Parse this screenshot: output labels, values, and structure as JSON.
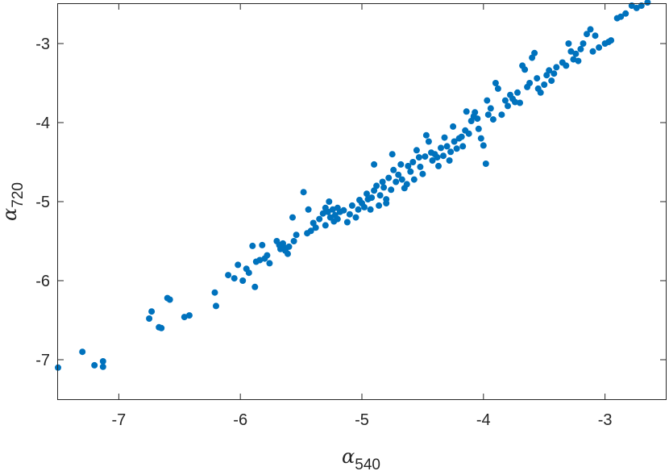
{
  "chart_data": {
    "type": "scatter",
    "title": "",
    "xlabel": {
      "symbol": "α",
      "subscript": "540"
    },
    "ylabel": {
      "symbol": "α",
      "subscript": "720"
    },
    "xlim": [
      -7.5,
      -2.5
    ],
    "ylim": [
      -7.5,
      -2.5
    ],
    "xticks": [
      -7,
      -6,
      -5,
      -4,
      -3
    ],
    "yticks": [
      -7,
      -6,
      -5,
      -4,
      -3
    ],
    "xtick_labels": [
      "-7",
      "-6",
      "-5",
      "-4",
      "-3"
    ],
    "ytick_labels": [
      "-7",
      "-6",
      "-5",
      "-4",
      "-3"
    ],
    "grid": false,
    "legend": false,
    "marker_color": "#0072BD",
    "series": [
      {
        "points": [
          [
            -7.5,
            -7.1
          ],
          [
            -7.3,
            -6.9
          ],
          [
            -7.2,
            -7.07
          ],
          [
            -7.13,
            -7.02
          ],
          [
            -7.13,
            -7.09
          ],
          [
            -6.75,
            -6.48
          ],
          [
            -6.73,
            -6.39
          ],
          [
            -6.67,
            -6.59
          ],
          [
            -6.65,
            -6.6
          ],
          [
            -6.6,
            -6.22
          ],
          [
            -6.58,
            -6.24
          ],
          [
            -6.46,
            -6.46
          ],
          [
            -6.42,
            -6.44
          ],
          [
            -6.21,
            -6.15
          ],
          [
            -6.2,
            -6.32
          ],
          [
            -6.1,
            -5.93
          ],
          [
            -6.05,
            -5.97
          ],
          [
            -6.02,
            -5.8
          ],
          [
            -5.98,
            -6.0
          ],
          [
            -5.95,
            -5.85
          ],
          [
            -5.93,
            -5.9
          ],
          [
            -5.9,
            -5.56
          ],
          [
            -5.88,
            -6.08
          ],
          [
            -5.87,
            -5.76
          ],
          [
            -5.84,
            -5.74
          ],
          [
            -5.82,
            -5.55
          ],
          [
            -5.8,
            -5.72
          ],
          [
            -5.78,
            -5.68
          ],
          [
            -5.76,
            -5.78
          ],
          [
            -5.7,
            -5.5
          ],
          [
            -5.68,
            -5.55
          ],
          [
            -5.67,
            -5.6
          ],
          [
            -5.65,
            -5.53
          ],
          [
            -5.64,
            -5.58
          ],
          [
            -5.63,
            -5.62
          ],
          [
            -5.61,
            -5.66
          ],
          [
            -5.6,
            -5.57
          ],
          [
            -5.57,
            -5.2
          ],
          [
            -5.56,
            -5.5
          ],
          [
            -5.54,
            -5.42
          ],
          [
            -5.48,
            -4.88
          ],
          [
            -5.45,
            -5.4
          ],
          [
            -5.42,
            -5.37
          ],
          [
            -5.44,
            -5.1
          ],
          [
            -5.4,
            -5.27
          ],
          [
            -5.38,
            -5.33
          ],
          [
            -5.35,
            -5.22
          ],
          [
            -5.32,
            -5.15
          ],
          [
            -5.3,
            -5.3
          ],
          [
            -5.3,
            -5.08
          ],
          [
            -5.28,
            -5.13
          ],
          [
            -5.27,
            -5.0
          ],
          [
            -5.26,
            -5.2
          ],
          [
            -5.24,
            -5.1
          ],
          [
            -5.23,
            -5.25
          ],
          [
            -5.22,
            -5.17
          ],
          [
            -5.2,
            -5.08
          ],
          [
            -5.2,
            -5.22
          ],
          [
            -5.18,
            -5.13
          ],
          [
            -5.15,
            -5.11
          ],
          [
            -5.12,
            -5.26
          ],
          [
            -5.1,
            -5.16
          ],
          [
            -5.08,
            -5.05
          ],
          [
            -5.05,
            -5.2
          ],
          [
            -5.03,
            -5.1
          ],
          [
            -5.02,
            -4.98
          ],
          [
            -5.0,
            -5.02
          ],
          [
            -4.98,
            -5.07
          ],
          [
            -4.96,
            -4.9
          ],
          [
            -4.95,
            -4.97
          ],
          [
            -4.93,
            -5.1
          ],
          [
            -4.92,
            -4.95
          ],
          [
            -4.9,
            -4.86
          ],
          [
            -4.9,
            -4.53
          ],
          [
            -4.88,
            -4.8
          ],
          [
            -4.86,
            -5.05
          ],
          [
            -4.85,
            -4.92
          ],
          [
            -4.83,
            -4.75
          ],
          [
            -4.82,
            -4.82
          ],
          [
            -4.8,
            -5.02
          ],
          [
            -4.8,
            -4.97
          ],
          [
            -4.78,
            -4.7
          ],
          [
            -4.76,
            -4.85
          ],
          [
            -4.75,
            -4.4
          ],
          [
            -4.74,
            -4.6
          ],
          [
            -4.72,
            -4.75
          ],
          [
            -4.7,
            -4.66
          ],
          [
            -4.68,
            -4.53
          ],
          [
            -4.67,
            -4.72
          ],
          [
            -4.65,
            -4.83
          ],
          [
            -4.63,
            -4.78
          ],
          [
            -4.62,
            -4.55
          ],
          [
            -4.6,
            -4.62
          ],
          [
            -4.58,
            -4.5
          ],
          [
            -4.57,
            -4.72
          ],
          [
            -4.55,
            -4.35
          ],
          [
            -4.53,
            -4.44
          ],
          [
            -4.52,
            -4.56
          ],
          [
            -4.5,
            -4.65
          ],
          [
            -4.48,
            -4.43
          ],
          [
            -4.47,
            -4.16
          ],
          [
            -4.45,
            -4.24
          ],
          [
            -4.43,
            -4.38
          ],
          [
            -4.42,
            -4.48
          ],
          [
            -4.4,
            -4.4
          ],
          [
            -4.38,
            -4.44
          ],
          [
            -4.37,
            -4.55
          ],
          [
            -4.35,
            -4.32
          ],
          [
            -4.33,
            -4.42
          ],
          [
            -4.32,
            -4.19
          ],
          [
            -4.3,
            -4.3
          ],
          [
            -4.28,
            -4.48
          ],
          [
            -4.27,
            -4.37
          ],
          [
            -4.25,
            -4.05
          ],
          [
            -4.24,
            -4.24
          ],
          [
            -4.22,
            -4.33
          ],
          [
            -4.2,
            -4.2
          ],
          [
            -4.18,
            -4.18
          ],
          [
            -4.17,
            -4.3
          ],
          [
            -4.15,
            -4.1
          ],
          [
            -4.14,
            -3.86
          ],
          [
            -4.12,
            -4.14
          ],
          [
            -4.1,
            -3.98
          ],
          [
            -4.08,
            -3.92
          ],
          [
            -4.07,
            -3.87
          ],
          [
            -4.05,
            -3.95
          ],
          [
            -4.04,
            -4.08
          ],
          [
            -4.02,
            -4.2
          ],
          [
            -4.0,
            -4.29
          ],
          [
            -3.98,
            -4.52
          ],
          [
            -3.97,
            -3.72
          ],
          [
            -3.96,
            -3.9
          ],
          [
            -3.94,
            -3.82
          ],
          [
            -3.92,
            -3.96
          ],
          [
            -3.9,
            -3.5
          ],
          [
            -3.88,
            -3.57
          ],
          [
            -3.85,
            -3.9
          ],
          [
            -3.82,
            -3.72
          ],
          [
            -3.8,
            -3.79
          ],
          [
            -3.78,
            -3.65
          ],
          [
            -3.76,
            -3.7
          ],
          [
            -3.74,
            -3.74
          ],
          [
            -3.72,
            -3.62
          ],
          [
            -3.7,
            -3.75
          ],
          [
            -3.68,
            -3.28
          ],
          [
            -3.66,
            -3.33
          ],
          [
            -3.64,
            -3.55
          ],
          [
            -3.62,
            -3.5
          ],
          [
            -3.6,
            -3.18
          ],
          [
            -3.58,
            -3.12
          ],
          [
            -3.56,
            -3.44
          ],
          [
            -3.55,
            -3.57
          ],
          [
            -3.53,
            -3.62
          ],
          [
            -3.5,
            -3.52
          ],
          [
            -3.48,
            -3.4
          ],
          [
            -3.46,
            -3.34
          ],
          [
            -3.44,
            -3.47
          ],
          [
            -3.42,
            -3.38
          ],
          [
            -3.4,
            -3.3
          ],
          [
            -3.35,
            -3.24
          ],
          [
            -3.32,
            -3.28
          ],
          [
            -3.3,
            -3.0
          ],
          [
            -3.28,
            -3.1
          ],
          [
            -3.26,
            -3.2
          ],
          [
            -3.24,
            -3.13
          ],
          [
            -3.22,
            -3.22
          ],
          [
            -3.2,
            -3.07
          ],
          [
            -3.18,
            -3.0
          ],
          [
            -3.15,
            -2.88
          ],
          [
            -3.12,
            -2.82
          ],
          [
            -3.1,
            -3.1
          ],
          [
            -3.08,
            -2.9
          ],
          [
            -3.05,
            -3.05
          ],
          [
            -3.0,
            -3.0
          ],
          [
            -2.97,
            -2.98
          ],
          [
            -2.95,
            -2.96
          ],
          [
            -2.9,
            -2.68
          ],
          [
            -2.87,
            -2.66
          ],
          [
            -2.83,
            -2.62
          ],
          [
            -2.78,
            -2.52
          ],
          [
            -2.74,
            -2.55
          ],
          [
            -2.7,
            -2.52
          ],
          [
            -2.65,
            -2.48
          ]
        ]
      }
    ]
  }
}
